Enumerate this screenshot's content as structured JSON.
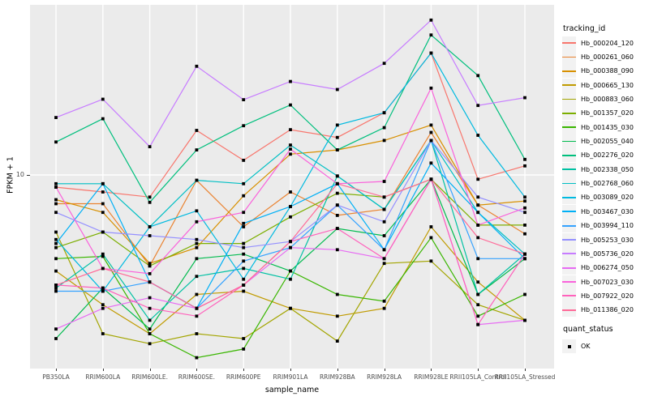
{
  "chart_data": {
    "type": "line",
    "title": "",
    "xlabel": "sample_name",
    "ylabel": "FPKM + 1",
    "yscale": "log10",
    "y_tick_label": "10",
    "ylim": [
      1.5,
      50
    ],
    "grid": "on",
    "legend_position": "right",
    "legend_title": "tracking_id",
    "quant_status": {
      "title": "quant_status",
      "items": [
        "OK"
      ]
    },
    "point_shape": "black-square",
    "colors": {
      "panel_bg": "#EBEBEB",
      "grid": "#FFFFFF",
      "point": "#000000",
      "legend_key_bg": "#F2F2F2"
    },
    "categories": [
      "PB350LA",
      "RRIM600LA",
      "RRIM600LE.",
      "RRIM600SE.",
      "RRIM600PE",
      "RRIM901LA",
      "RRIM928BA",
      "RRIM928LA",
      "RRIM928LE",
      "RRII105LA_Control",
      "RRII105LA_Stressed"
    ],
    "series": [
      {
        "name": "Hb_000204_120",
        "color": "#F8766D",
        "values": [
          8.9,
          8.5,
          8.1,
          15.3,
          11.5,
          15.4,
          14.3,
          18.1,
          32,
          9.6,
          10.9
        ]
      },
      {
        "name": "Hb_000261_060",
        "color": "#EA8331",
        "values": [
          7.6,
          7.6,
          4.2,
          9.5,
          6.1,
          8.5,
          6.8,
          7.2,
          15.0,
          7.5,
          5.7
        ]
      },
      {
        "name": "Hb_000388_090",
        "color": "#D89000",
        "values": [
          7.9,
          7.0,
          4.3,
          5.0,
          8.2,
          12.2,
          12.7,
          13.9,
          16.1,
          7.5,
          7.8
        ]
      },
      {
        "name": "Hb_000665_130",
        "color": "#C09B00",
        "values": [
          4.0,
          2.9,
          2.2,
          3.2,
          3.3,
          2.8,
          2.6,
          2.8,
          6.1,
          3.6,
          2.5
        ]
      },
      {
        "name": "Hb_000883_060",
        "color": "#A3A500",
        "values": [
          5.8,
          2.2,
          2.0,
          2.2,
          2.1,
          2.8,
          2.05,
          4.3,
          4.4,
          2.9,
          2.5
        ]
      },
      {
        "name": "Hb_001357_020",
        "color": "#7CAE00",
        "values": [
          5.0,
          5.8,
          4.2,
          5.2,
          5.2,
          6.7,
          8.4,
          8.1,
          9.6,
          6.2,
          6.2
        ]
      },
      {
        "name": "Hb_001435_030",
        "color": "#39B600",
        "values": [
          4.5,
          4.6,
          2.2,
          1.75,
          1.9,
          4.0,
          3.2,
          3.0,
          5.5,
          2.6,
          3.2
        ]
      },
      {
        "name": "Hb_002055_040",
        "color": "#00BB4E",
        "values": [
          2.1,
          3.4,
          2.3,
          4.5,
          4.7,
          4.0,
          6.0,
          5.6,
          9.6,
          3.2,
          4.5
        ]
      },
      {
        "name": "Hb_002276_020",
        "color": "#00BF7D",
        "values": [
          13.7,
          17.1,
          7.7,
          12.7,
          16.0,
          19.5,
          12.7,
          15.7,
          38,
          25.8,
          11.6
        ]
      },
      {
        "name": "Hb_002338_050",
        "color": "#00C1A3",
        "values": [
          3.4,
          4.7,
          2.5,
          3.8,
          4.1,
          3.7,
          9.9,
          7.2,
          13.9,
          3.2,
          4.7
        ]
      },
      {
        "name": "Hb_002768_060",
        "color": "#00BFC4",
        "values": [
          9.2,
          9.2,
          6.1,
          9.5,
          9.2,
          13.3,
          9.9,
          7.2,
          13.9,
          7.0,
          4.7
        ]
      },
      {
        "name": "Hb_003089_020",
        "color": "#00BAE0",
        "values": [
          5.4,
          3.3,
          6.1,
          7.1,
          3.7,
          7.4,
          16.1,
          18.1,
          32,
          14.6,
          8.1
        ]
      },
      {
        "name": "Hb_003467_030",
        "color": "#00B0F6",
        "values": [
          5.2,
          9.2,
          3.6,
          2.8,
          6.3,
          7.4,
          9.2,
          4.9,
          11.2,
          7.0,
          4.5
        ]
      },
      {
        "name": "Hb_003994_110",
        "color": "#35A2FF",
        "values": [
          3.3,
          3.3,
          3.6,
          2.8,
          4.4,
          5.0,
          7.5,
          4.9,
          13.9,
          4.5,
          4.5
        ]
      },
      {
        "name": "Hb_005253_030",
        "color": "#9590FF",
        "values": [
          7.0,
          5.8,
          5.6,
          5.4,
          5.0,
          5.3,
          7.5,
          6.4,
          13.9,
          8.1,
          7.0
        ]
      },
      {
        "name": "Hb_005736_020",
        "color": "#C77CFF",
        "values": [
          17.3,
          20.6,
          13.1,
          28.2,
          20.5,
          24.4,
          22.6,
          29,
          43.8,
          19.4,
          20.9
        ]
      },
      {
        "name": "Hb_006274_050",
        "color": "#E76BF3",
        "values": [
          2.3,
          2.8,
          3.1,
          2.8,
          3.5,
          5.0,
          4.9,
          4.5,
          9.6,
          2.4,
          2.5
        ]
      },
      {
        "name": "Hb_007023_030",
        "color": "#FA62DB",
        "values": [
          8.9,
          4.1,
          3.9,
          6.4,
          7.0,
          12.8,
          9.2,
          9.4,
          22.9,
          6.2,
          7.3
        ]
      },
      {
        "name": "Hb_007922_020",
        "color": "#FF62BC",
        "values": [
          3.5,
          3.4,
          2.8,
          2.6,
          3.5,
          5.3,
          6.0,
          4.5,
          9.6,
          2.4,
          4.7
        ]
      },
      {
        "name": "Hb_011386_020",
        "color": "#FF6A98",
        "values": [
          3.5,
          4.1,
          3.6,
          2.8,
          3.5,
          5.3,
          9.2,
          8.1,
          9.6,
          5.5,
          4.7
        ]
      }
    ]
  }
}
